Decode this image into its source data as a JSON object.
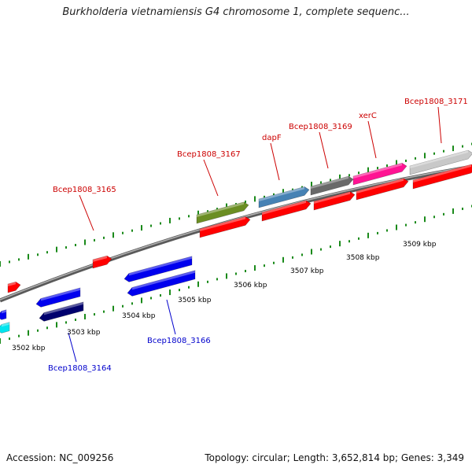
{
  "title": "Burkholderia vietnamiensis G4 chromosome 1, complete sequenc...",
  "colors": {
    "forward_label": "#cc0000",
    "reverse_label": "#0000cc",
    "tick_mark": "#1a8a1a",
    "backbone": "#888888",
    "red": "#ff0000",
    "blue": "#0000ee",
    "navy": "#00006e",
    "cyan": "#00e5ee",
    "olive": "#6b8e23",
    "steelblue": "#4682b4",
    "dimgray": "#696969",
    "magenta": "#ff1493",
    "lightgray": "#c8c8c8"
  },
  "scale_labels": [
    "3502 kbp",
    "3503 kbp",
    "3504 kbp",
    "3505 kbp",
    "3506 kbp",
    "3507 kbp",
    "3508 kbp",
    "3509 kbp"
  ],
  "gene_labels": {
    "forward": [
      "Bcep1808_3165",
      "Bcep1808_3167",
      "dapF",
      "Bcep1808_3169",
      "xerC",
      "Bcep1808_3171"
    ],
    "reverse": [
      "Bcep1808_3164",
      "Bcep1808_3166"
    ]
  },
  "footer": {
    "accession": "Accession: NC_009256",
    "stats": "Topology: circular; Length: 3,652,814 bp; Genes: 3,349"
  }
}
